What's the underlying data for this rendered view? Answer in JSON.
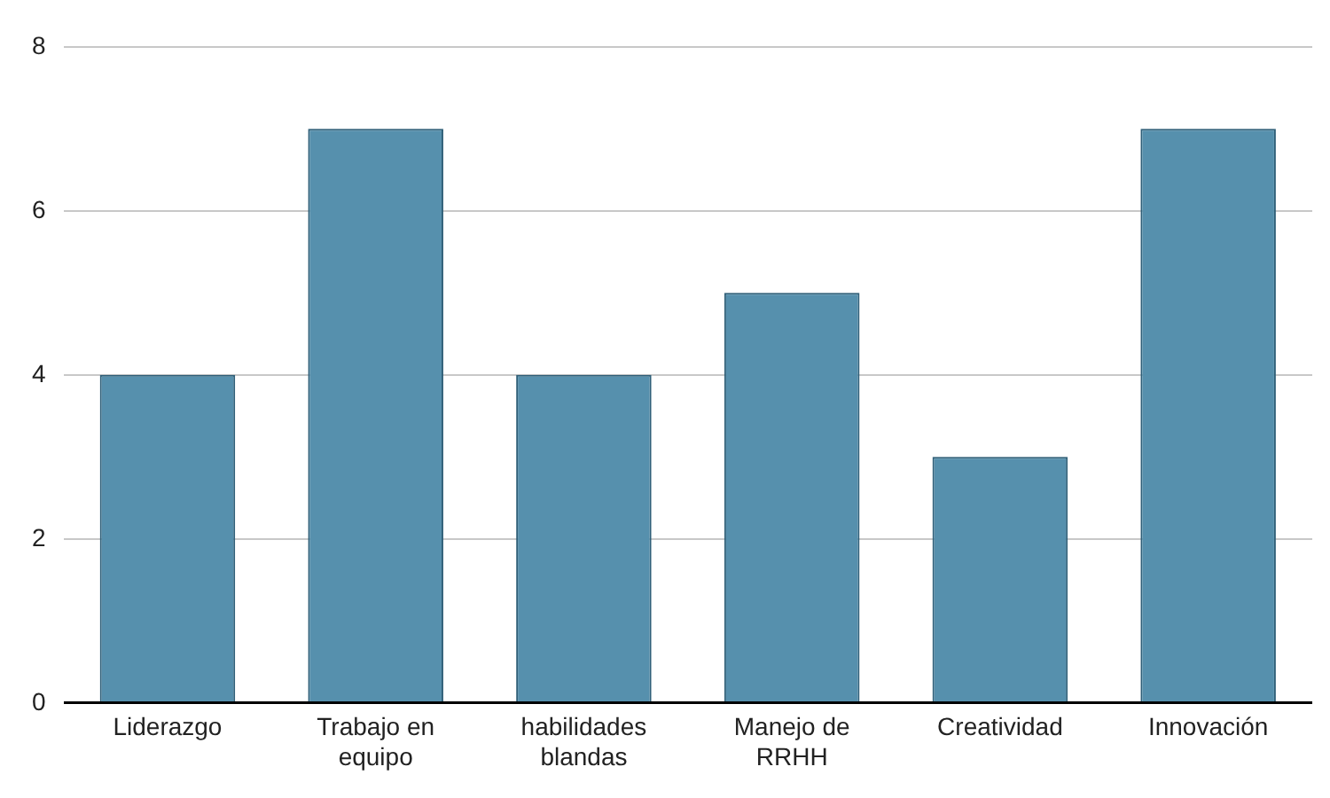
{
  "chart_data": {
    "type": "bar",
    "categories": [
      "Liderazgo",
      "Trabajo en equipo",
      "habilidades blandas",
      "Manejo de RRHH",
      "Creatividad",
      "Innovación"
    ],
    "values": [
      4,
      7,
      4,
      5,
      3,
      7
    ],
    "color": "#5690ad",
    "ylim": [
      0,
      8
    ],
    "yticks": [
      0,
      2,
      4,
      6,
      8
    ],
    "grid": "y",
    "legend": false
  }
}
